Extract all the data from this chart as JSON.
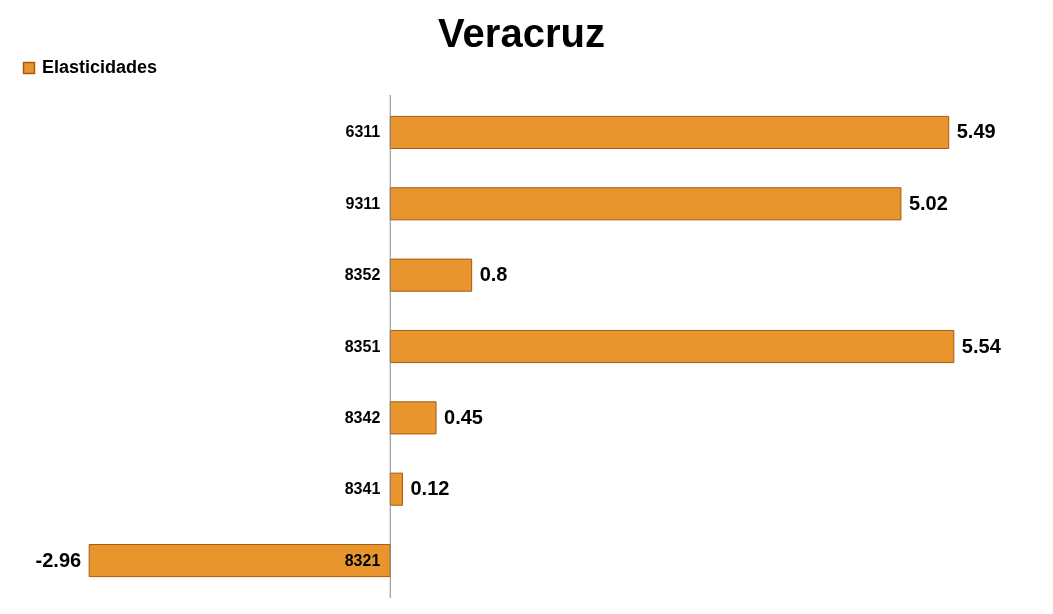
{
  "chart_data": {
    "type": "bar",
    "orientation": "horizontal",
    "title": "Veracruz",
    "categories": [
      "6311",
      "9311",
      "8352",
      "8351",
      "8342",
      "8341",
      "8321"
    ],
    "series": [
      {
        "name": "Elasticidades",
        "color": "#e8952e",
        "values": [
          5.49,
          5.02,
          0.8,
          5.54,
          0.45,
          0.12,
          -2.96
        ]
      }
    ],
    "data_labels": true,
    "legend": "top"
  }
}
